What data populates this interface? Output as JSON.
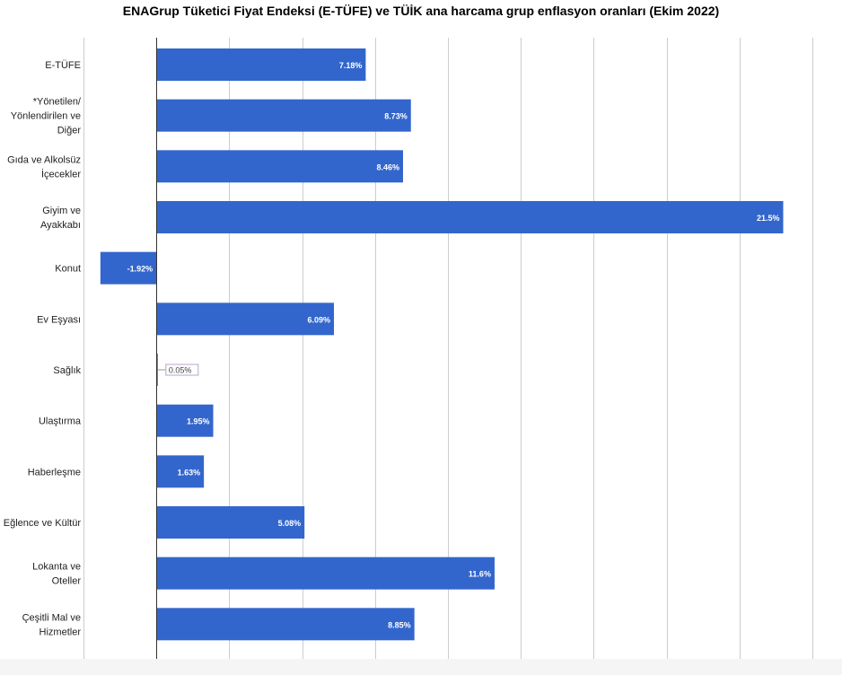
{
  "chart_data": {
    "type": "bar",
    "orientation": "horizontal",
    "title": "ENAGrup Tüketici Fiyat Endeksi (E-TÜFE) ve TÜİK ana harcama grup enflasyon oranları (Ekim 2022)",
    "categories": [
      [
        "E-TÜFE"
      ],
      [
        "*Yönetilen/",
        "Yönlendirilen ve",
        "Diğer"
      ],
      [
        "Gıda ve Alkolsüz",
        "İçecekler"
      ],
      [
        "Giyim ve",
        "Ayakkabı"
      ],
      [
        "Konut"
      ],
      [
        "Ev Eşyası"
      ],
      [
        "Sağlık"
      ],
      [
        "Ulaştırma"
      ],
      [
        "Haberleşme"
      ],
      [
        "Eğlence ve Kültür"
      ],
      [
        "Lokanta ve",
        "Oteller"
      ],
      [
        "Çeşitli Mal ve",
        "Hizmetler"
      ]
    ],
    "values": [
      7.18,
      8.73,
      8.46,
      21.5,
      -1.92,
      6.09,
      0.05,
      1.95,
      1.63,
      5.08,
      11.6,
      8.85
    ],
    "value_labels": [
      "7.18%",
      "8.73%",
      "8.46%",
      "21.5%",
      "-1.92%",
      "6.09%",
      "0.05%",
      "1.95%",
      "1.63%",
      "5.08%",
      "11.6%",
      "8.85%"
    ],
    "xlim": [
      -2.5,
      22.5
    ],
    "grid": true,
    "bar_color": "#3366cc"
  }
}
